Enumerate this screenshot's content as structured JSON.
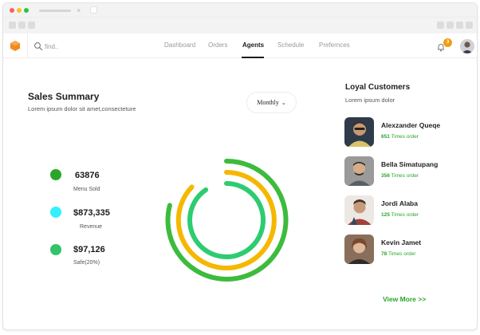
{
  "nav": {
    "search_placeholder": "find..",
    "links": [
      "Dashboard",
      "Orders",
      "Agents",
      "Schedule",
      "Prefernces"
    ],
    "active": "Agents",
    "notification_count": "3"
  },
  "summary": {
    "title": "Sales Summary",
    "subtitle": "Lorem ipsum dolor sit amet,consecteture",
    "period_label": "Monthly"
  },
  "stats": [
    {
      "value": "63876",
      "label": "Menu Sold",
      "color": "#2aa52a"
    },
    {
      "value": "$873,335",
      "label": "Revenue",
      "color": "#33f0ff"
    },
    {
      "value": "$97,126",
      "label": "Safe(20%)",
      "color": "#31c46a"
    }
  ],
  "ring_colors": [
    "#3dbb3d",
    "#f5b800",
    "#2ecc71"
  ],
  "loyal": {
    "title": "Loyal Customers",
    "subtitle": "Lorem ipsum dolor",
    "customers": [
      {
        "name": "Alexzander Queqe",
        "count": "651",
        "suffix": "Times order"
      },
      {
        "name": "Bella Simatupang",
        "count": "356",
        "suffix": "Times order"
      },
      {
        "name": "Jordi Alaba",
        "count": "125",
        "suffix": "Times order"
      },
      {
        "name": "Kevin Jamet",
        "count": "78",
        "suffix": "Times order"
      }
    ],
    "view_more": "View More >>"
  },
  "icons": [
    "logo-icon",
    "search-icon",
    "bell-icon",
    "avatar",
    "chevron-down-icon"
  ]
}
